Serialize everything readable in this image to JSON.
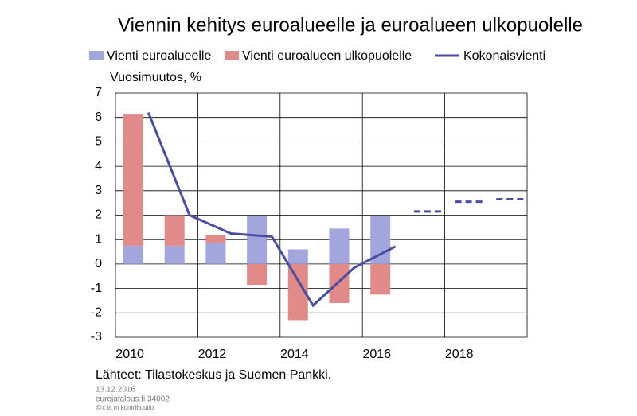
{
  "chart_data": {
    "type": "bar",
    "title": "Viennin kehitys euroalueelle ja euroalueen ulkopuolelle",
    "ylabel": "Vuosimuutos, %",
    "categories": [
      "2010",
      null,
      "2012",
      null,
      "2014",
      null,
      "2016",
      null,
      "2018",
      null
    ],
    "series": [
      {
        "name": "Vienti euroalueelle",
        "color": "#a3a6dc",
        "values": [
          0.75,
          0.75,
          0.85,
          1.95,
          0.6,
          1.45,
          1.95,
          null,
          null,
          null
        ]
      },
      {
        "name": "Vienti euroalueen ulkopuolelle",
        "color": "#e08a8a",
        "values": [
          5.4,
          1.25,
          0.35,
          -0.85,
          -2.3,
          -1.6,
          -1.25,
          null,
          null,
          null
        ]
      },
      {
        "name": "Kokonaisvienti",
        "type": "line",
        "color": "#4a4d9e",
        "values": [
          6.2,
          2.0,
          1.25,
          1.12,
          -1.7,
          -0.15,
          0.72,
          null,
          null,
          null
        ],
        "forecast_values": [
          null,
          null,
          null,
          null,
          null,
          null,
          null,
          2.15,
          2.55,
          2.65
        ]
      }
    ],
    "ylim": [
      -3,
      7
    ],
    "yticks": [
      -3,
      -2,
      -1,
      0,
      1,
      2,
      3,
      4,
      5,
      6,
      7
    ],
    "grid": true,
    "source": "Lähteet: Tilastokeskus  ja Suomen Pankki.",
    "notes": [
      "13.12.2016",
      "eurojatalous.fi  34002",
      "@x ja m kontribuutio"
    ]
  }
}
